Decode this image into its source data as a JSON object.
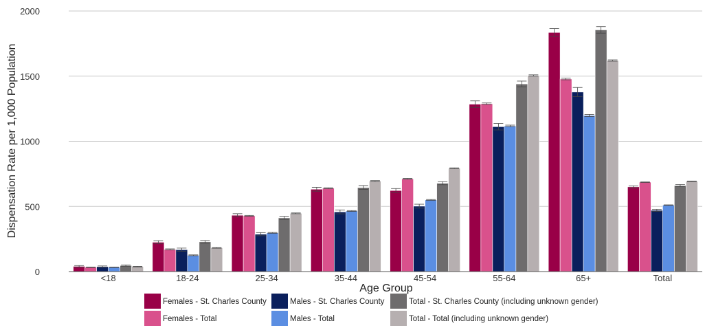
{
  "chart_data": {
    "type": "bar",
    "xlabel": "Age Group",
    "ylabel": "Dispensation Rate per 1,000 Population",
    "ylim": [
      0,
      2000
    ],
    "yticks": [
      0,
      500,
      1000,
      1500,
      2000
    ],
    "grid": "horizontal",
    "legend_position": "bottom",
    "categories": [
      "<18",
      "18-24",
      "25-34",
      "35-44",
      "45-54",
      "55-64",
      "65+",
      "Total"
    ],
    "series": [
      {
        "name": "Females - St. Charles County",
        "color": "#990047",
        "values": [
          40,
          225,
          432,
          632,
          622,
          1285,
          1835,
          650
        ],
        "errors": [
          6,
          12,
          12,
          15,
          15,
          25,
          30,
          8
        ]
      },
      {
        "name": "Females - Total",
        "color": "#d9518c",
        "values": [
          33,
          170,
          428,
          640,
          712,
          1288,
          1478,
          686
        ],
        "errors": [
          2,
          4,
          3,
          3,
          3,
          6,
          6,
          2
        ]
      },
      {
        "name": "Males - St. Charles County",
        "color": "#0a1f5c",
        "values": [
          38,
          168,
          287,
          458,
          502,
          1112,
          1378,
          470
        ],
        "errors": [
          5,
          12,
          12,
          15,
          15,
          25,
          35,
          8
        ]
      },
      {
        "name": "Males - Total",
        "color": "#5b8ee2",
        "values": [
          33,
          125,
          297,
          465,
          550,
          1118,
          1198,
          510
        ],
        "errors": [
          2,
          3,
          3,
          3,
          3,
          6,
          8,
          2
        ]
      },
      {
        "name": "Total - St. Charles County (including unknown gender)",
        "color": "#6e6c6d",
        "values": [
          46,
          228,
          412,
          645,
          678,
          1440,
          1855,
          660
        ],
        "errors": [
          5,
          10,
          12,
          15,
          12,
          22,
          25,
          8
        ]
      },
      {
        "name": "Total - Total (including unknown gender)",
        "color": "#b6afb0",
        "values": [
          38,
          182,
          447,
          695,
          793,
          1505,
          1620,
          693
        ],
        "errors": [
          2,
          3,
          3,
          3,
          3,
          5,
          5,
          2
        ]
      }
    ]
  }
}
